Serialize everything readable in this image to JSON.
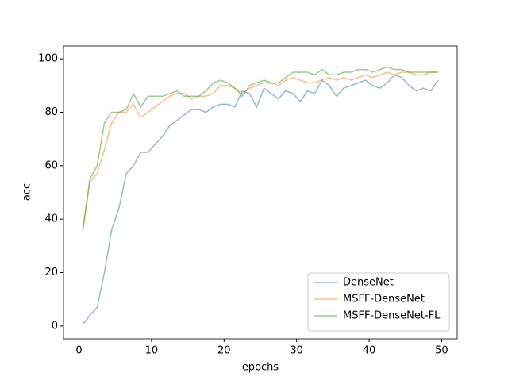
{
  "chart_data": {
    "type": "line",
    "xlabel": "epochs",
    "ylabel": "acc",
    "x": [
      0.5,
      1.5,
      2.5,
      3.5,
      4.5,
      5.5,
      6.5,
      7.5,
      8.5,
      9.5,
      10.5,
      11.5,
      12.5,
      13.5,
      14.5,
      15.5,
      16.5,
      17.5,
      18.5,
      19.5,
      20.5,
      21.5,
      22.5,
      23.5,
      24.5,
      25.5,
      26.5,
      27.5,
      28.5,
      29.5,
      30.5,
      31.5,
      32.5,
      33.5,
      34.5,
      35.5,
      36.5,
      37.5,
      38.5,
      39.5,
      40.5,
      41.5,
      42.5,
      43.5,
      44.5,
      45.5,
      46.5,
      47.5,
      48.5,
      49.5
    ],
    "series": [
      {
        "name": "DenseNet",
        "color": "#1f77b4",
        "values": [
          0.5,
          4,
          7,
          20,
          36,
          44,
          57,
          60,
          65,
          65,
          68,
          71,
          75,
          77,
          79,
          81,
          81,
          80,
          82,
          83,
          83,
          82,
          88,
          87,
          82,
          89,
          87,
          85,
          88,
          87,
          84,
          88,
          87,
          92,
          90,
          86,
          89,
          90,
          91,
          92,
          90,
          89,
          91,
          94,
          93,
          90,
          88,
          89,
          88,
          92
        ]
      },
      {
        "name": "MSFF-DenseNet",
        "color": "#ff7f0e",
        "values": [
          35,
          54,
          57,
          66,
          76,
          80,
          80,
          83,
          78,
          80,
          82,
          84,
          86,
          87,
          87,
          85,
          86,
          86,
          87,
          90,
          90,
          89,
          87,
          89,
          90,
          91,
          91,
          90,
          92,
          93,
          92,
          91,
          91,
          92,
          93,
          92,
          93,
          92,
          93,
          94,
          93,
          94,
          95,
          94,
          95,
          95,
          94,
          94,
          95,
          95
        ]
      },
      {
        "name": "MSFF-DenseNet-FL",
        "color": "#2ca02c",
        "values": [
          36,
          55,
          60,
          76,
          80,
          80,
          81,
          87,
          82,
          86,
          86,
          86,
          87,
          88,
          86,
          86,
          86,
          88,
          91,
          92,
          91,
          89,
          86,
          90,
          91,
          92,
          91,
          91,
          93,
          95,
          95,
          95,
          94,
          96,
          94,
          94,
          95,
          95,
          96,
          96,
          95,
          96,
          97,
          96,
          96,
          95,
          95,
          95,
          95,
          95
        ]
      }
    ],
    "xlim": [
      -2.14,
      52.14
    ],
    "xticks": [
      0,
      10,
      20,
      30,
      40,
      50
    ],
    "ylim": [
      -4.8,
      104.8
    ],
    "yticks": [
      0,
      20,
      40,
      60,
      80,
      100
    ],
    "legend": "lower right",
    "grid": false
  }
}
